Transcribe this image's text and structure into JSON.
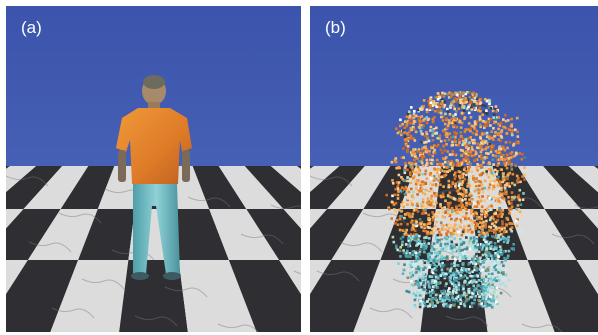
{
  "figure": {
    "panels": [
      {
        "id": "a",
        "label": "(a)",
        "content": "textured-human-model-on-checkerboard"
      },
      {
        "id": "b",
        "label": "(b)",
        "content": "colored-point-cloud-on-checkerboard"
      }
    ],
    "colors": {
      "sky": "#3f57ad",
      "floor_light": "#dcdcdc",
      "floor_dark": "#2f2f33",
      "shirt": "#e0832e",
      "pants": "#72b9c0"
    }
  }
}
